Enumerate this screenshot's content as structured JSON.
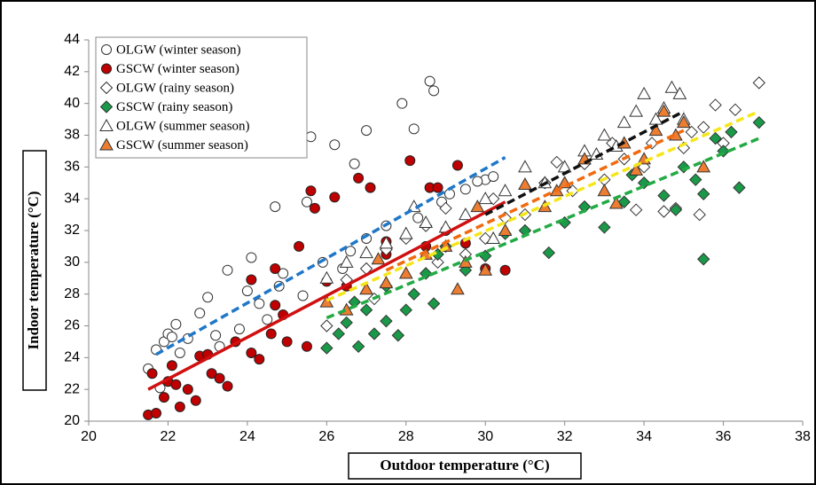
{
  "chart_data": {
    "type": "scatter",
    "x_label": "Outdoor temperature (°C)",
    "y_label": "Indoor temperature (°C)",
    "xlim": [
      20,
      38
    ],
    "xticks": [
      20,
      22,
      24,
      26,
      28,
      30,
      32,
      34,
      36,
      38
    ],
    "ylim": [
      20,
      44
    ],
    "yticks": [
      20,
      22,
      24,
      26,
      28,
      30,
      32,
      34,
      36,
      38,
      40,
      42,
      44
    ],
    "legend": "upper left",
    "series": [
      {
        "name": "OLGW (winter season)",
        "color": "#ffffff",
        "marker": "circle",
        "x": [
          21.5,
          21.7,
          21.9,
          22,
          22.2,
          22.5,
          22.8,
          23,
          23.2,
          23.5,
          24,
          24.1,
          24.3,
          24.7,
          24.8,
          24.9,
          25.5,
          25.6,
          26.2,
          26.7,
          27,
          27.5,
          27.9,
          28.2,
          28.6,
          28.7,
          28.9,
          29.5,
          30,
          30.2,
          21.8,
          22.3,
          23.8,
          24.5,
          25.4,
          26.4,
          27,
          28.3,
          29.1,
          29.8,
          22.1,
          23.3,
          25.9,
          26.6
        ],
        "y": [
          23.3,
          24.5,
          25,
          25.5,
          26.1,
          25.2,
          26.8,
          27.8,
          25.4,
          29.5,
          28.2,
          30.3,
          27.4,
          33.5,
          28.5,
          29.3,
          33.8,
          37.9,
          37.4,
          36.2,
          38.3,
          32.3,
          40,
          38.4,
          41.4,
          40.8,
          33.8,
          34.6,
          35.2,
          35.4,
          22.1,
          24.3,
          25.8,
          26.4,
          27.9,
          29.6,
          31.5,
          32.8,
          34.3,
          35.1,
          25.3,
          24.7,
          30,
          30.7
        ],
        "trend": {
          "color": "#1f77c8",
          "dash": true,
          "x": [
            21.7,
            30.5
          ],
          "y": [
            24.2,
            36.6
          ]
        }
      },
      {
        "name": "GSCW (winter season)",
        "color": "#c00000",
        "marker": "circle",
        "x": [
          21.5,
          21.7,
          21.6,
          21.9,
          22,
          22.1,
          22.3,
          22.5,
          22.7,
          22.8,
          23,
          23.1,
          23.3,
          23.5,
          23.7,
          24.1,
          24.3,
          24.1,
          24.7,
          24.7,
          24.9,
          25,
          25.3,
          25.5,
          25.6,
          25.7,
          26.2,
          26.8,
          27.1,
          27.5,
          28.1,
          28.6,
          28.8,
          29.3,
          29.5,
          30,
          30.5,
          26,
          26.5,
          27.5,
          28.5,
          29,
          22.2,
          24.6
        ],
        "y": [
          20.4,
          20.5,
          23,
          21.5,
          22.5,
          23.5,
          20.9,
          22,
          21.3,
          24.1,
          24.2,
          23,
          22.7,
          22.2,
          25,
          24.3,
          23.9,
          28.9,
          27.3,
          29.6,
          26.7,
          25,
          31,
          24.7,
          34.5,
          33.4,
          34.1,
          35.3,
          34.7,
          31.3,
          36.4,
          34.7,
          34.7,
          36.1,
          31.2,
          29.6,
          29.5,
          28.8,
          28.5,
          30.5,
          31,
          32,
          22.3,
          25.5
        ],
        "trend": {
          "color": "#d01010",
          "dash": false,
          "x": [
            21.5,
            30.5
          ],
          "y": [
            22,
            33.8
          ]
        }
      },
      {
        "name": "OLGW (rainy season)",
        "color": "#ffffff",
        "marker": "diamond",
        "x": [
          26,
          26.5,
          27,
          27.5,
          28,
          28.5,
          29,
          29.5,
          30,
          30.5,
          31,
          31.5,
          31.8,
          32.5,
          33,
          33.5,
          33.8,
          34.2,
          34.5,
          34.8,
          35,
          35.2,
          35.4,
          35.5,
          35.8,
          36.3,
          36.9,
          36,
          27.2,
          28.8,
          30.2,
          32.2,
          33.2,
          34
        ],
        "y": [
          26,
          28.9,
          29.6,
          30.8,
          31.5,
          32.3,
          33.4,
          30.5,
          31.5,
          32.8,
          33,
          35,
          36.3,
          36.2,
          35.2,
          36.5,
          33.3,
          37.5,
          33.2,
          33.4,
          37.2,
          38.2,
          33,
          38.5,
          39.9,
          39.6,
          41.3,
          37.5,
          27.7,
          30,
          34,
          34.5,
          37.5,
          36
        ],
        "trend": {
          "color": "#f5e61a",
          "dash": true,
          "x": [
            26,
            36.9
          ],
          "y": [
            27.6,
            39.5
          ]
        }
      },
      {
        "name": "GSCW (rainy season)",
        "color": "#1a9a48",
        "marker": "diamond",
        "x": [
          26,
          26.3,
          26.5,
          26.8,
          27,
          27.2,
          27.5,
          27.8,
          28,
          28.2,
          28.5,
          28.8,
          29,
          29.5,
          30,
          30.5,
          31,
          31.6,
          32,
          32.5,
          33,
          33.5,
          34,
          34.5,
          34.8,
          35,
          35.3,
          35.5,
          35.5,
          35.8,
          36,
          36.4,
          36.9,
          26.7,
          27.5,
          28.7,
          33.7,
          36.2
        ],
        "y": [
          24.6,
          25.5,
          26.2,
          24.7,
          27,
          25.5,
          26.3,
          25.4,
          27,
          28,
          29.3,
          30.5,
          31,
          29.5,
          30.4,
          31.8,
          32,
          30.6,
          32.5,
          33.5,
          32.2,
          33.8,
          35,
          34.2,
          33.3,
          36,
          35.2,
          30.2,
          34.3,
          37.8,
          37,
          34.7,
          38.8,
          27.5,
          28.5,
          27.4,
          35.5,
          38.2
        ],
        "trend": {
          "color": "#22aa44",
          "dash": true,
          "x": [
            26,
            36.9
          ],
          "y": [
            26.5,
            37.8
          ]
        }
      },
      {
        "name": "OLGW (summer season)",
        "color": "#ffffff",
        "marker": "triangle",
        "x": [
          26,
          26.5,
          27,
          27.5,
          28,
          28.5,
          29,
          29.5,
          30,
          30.5,
          31,
          31.5,
          32,
          32.5,
          33,
          33.3,
          33.5,
          33.8,
          34,
          34.3,
          34.5,
          34.7,
          34.9,
          35,
          30.2,
          28.2,
          32.8
        ],
        "y": [
          29,
          30,
          30.6,
          31.2,
          31.8,
          32.5,
          32.2,
          33,
          34,
          34.5,
          36,
          35,
          36,
          37,
          38,
          37.3,
          38.8,
          39.5,
          40.6,
          39,
          39.7,
          41,
          40.6,
          39,
          31.5,
          33.5,
          36.8
        ],
        "trend": {
          "color": "#111111",
          "dash": true,
          "x": [
            30,
            35
          ],
          "y": [
            33,
            39.5
          ]
        }
      },
      {
        "name": "GSCW (summer season)",
        "color": "#ed7d31",
        "marker": "triangle",
        "x": [
          26,
          26.5,
          27,
          27.5,
          28,
          28.5,
          29,
          29.3,
          29.5,
          30,
          30.5,
          31,
          31.5,
          32,
          32.5,
          33,
          33.5,
          33.8,
          34,
          34.3,
          34.5,
          34.8,
          35,
          35.5,
          27.3,
          29.8,
          31.8,
          33.3
        ],
        "y": [
          27.5,
          27,
          28.3,
          28.7,
          29.3,
          30.5,
          31,
          28.3,
          30,
          29.5,
          32,
          34.9,
          33.5,
          35,
          36.5,
          34.5,
          37.5,
          35.8,
          36.5,
          38.3,
          39.5,
          38,
          38.8,
          36,
          30.2,
          33.5,
          34.5,
          33.7
        ],
        "trend": {
          "color": "#f06a10",
          "dash": true,
          "x": [
            27.5,
            35
          ],
          "y": [
            29.5,
            38.3
          ]
        }
      }
    ]
  }
}
